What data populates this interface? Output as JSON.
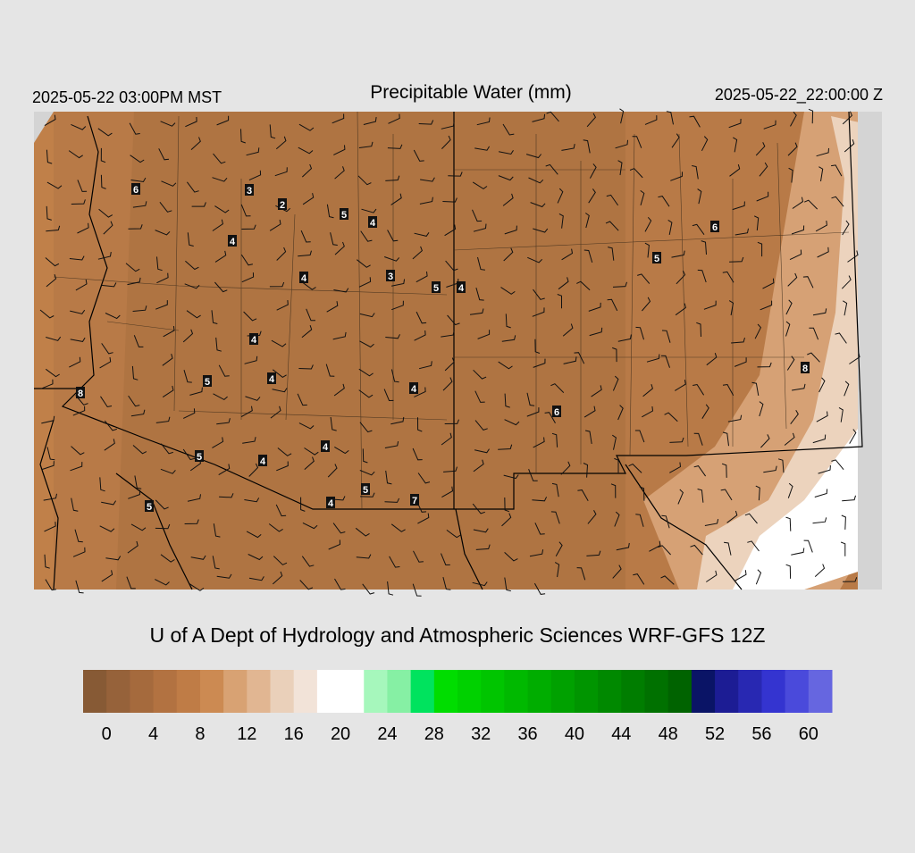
{
  "header": {
    "left": "2025-05-22 03:00PM MST",
    "title": "Precipitable Water (mm)",
    "right": "2025-05-22_22:00:00 Z"
  },
  "map": {
    "stations": [
      6,
      3,
      2,
      5,
      4,
      4,
      4,
      3,
      5,
      4,
      5,
      6,
      4,
      5,
      4,
      4,
      8,
      6,
      8,
      4,
      5,
      4,
      5,
      7,
      4,
      5
    ]
  },
  "footer": {
    "credit": "U of A Dept of Hydrology and Atmospheric Sciences WRF-GFS 12Z"
  },
  "colorbar": {
    "bins": [
      -2,
      0,
      2,
      4,
      6,
      8,
      10,
      12,
      14,
      16,
      18,
      20,
      22,
      24,
      26,
      28,
      30,
      32,
      34,
      36,
      38,
      40,
      42,
      44,
      46,
      48,
      50,
      52,
      54,
      56,
      58,
      60,
      62
    ],
    "colors": [
      "#875a35",
      "#96623a",
      "#a56a3d",
      "#b27241",
      "#bf7c46",
      "#cc8a52",
      "#d8a273",
      "#e1b692",
      "#ead0ba",
      "#f2e3d8",
      "#ffffff",
      "#ffffff",
      "#a6f7bc",
      "#86f0a4",
      "#00e35e",
      "#00dd00",
      "#00d100",
      "#00c500",
      "#00b900",
      "#00ad00",
      "#00a100",
      "#009500",
      "#008900",
      "#007d00",
      "#007100",
      "#006300",
      "#0a1466",
      "#1c1c94",
      "#2828b2",
      "#3434d0",
      "#4a4adb",
      "#6666e0"
    ],
    "ticks": [
      0,
      4,
      8,
      12,
      16,
      20,
      24,
      28,
      32,
      36,
      40,
      44,
      48,
      52,
      56,
      60
    ]
  }
}
